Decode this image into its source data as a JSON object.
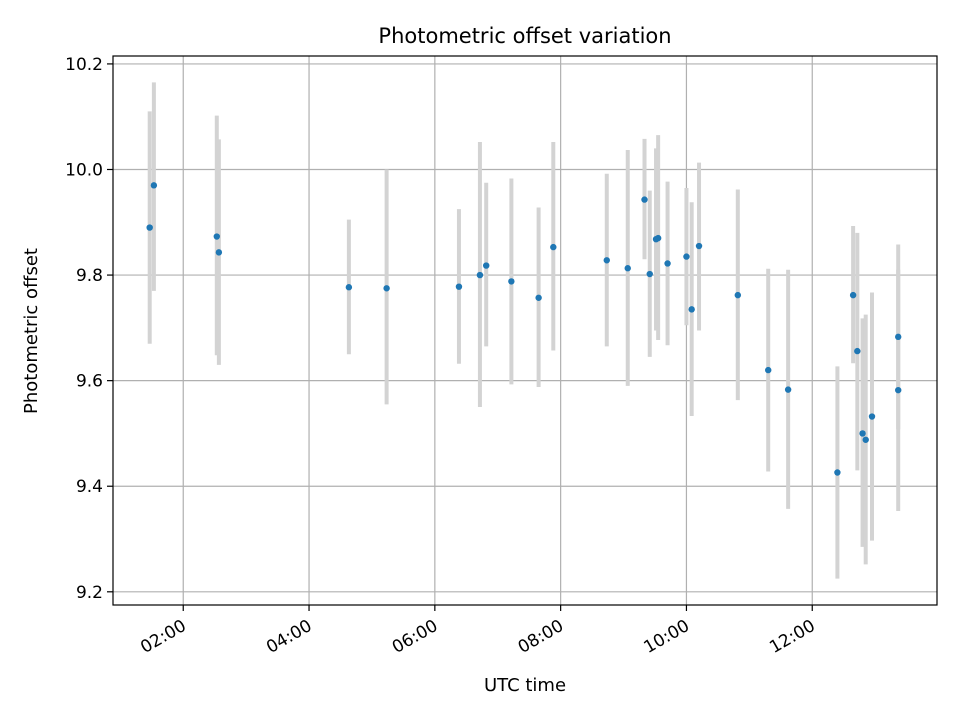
{
  "chart_data": {
    "type": "scatter",
    "title": "Photometric offset variation",
    "xlabel": "UTC time",
    "ylabel": "Photometric offset",
    "x_ticks": [
      "02:00",
      "04:00",
      "06:00",
      "08:00",
      "10:00",
      "12:00"
    ],
    "y_ticks": [
      "9.2",
      "9.4",
      "9.6",
      "9.8",
      "10.0",
      "10.2"
    ],
    "xlim": [
      "00:53",
      "13:59"
    ],
    "ylim": [
      9.175,
      10.215
    ],
    "grid": true,
    "colors": {
      "points": "#1f77b4",
      "errorbars": "#d3d3d3",
      "grid": "#b0b0b0"
    },
    "points": [
      {
        "time": "01:28",
        "y": 9.89,
        "err_low": 9.67,
        "err_high": 10.11
      },
      {
        "time": "01:32",
        "y": 9.97,
        "err_low": 9.77,
        "err_high": 10.165
      },
      {
        "time": "02:32",
        "y": 9.873,
        "err_low": 9.648,
        "err_high": 10.102
      },
      {
        "time": "02:34",
        "y": 9.843,
        "err_low": 9.63,
        "err_high": 10.057
      },
      {
        "time": "04:38",
        "y": 9.777,
        "err_low": 9.65,
        "err_high": 9.905
      },
      {
        "time": "05:14",
        "y": 9.775,
        "err_low": 9.555,
        "err_high": 10.0
      },
      {
        "time": "06:23",
        "y": 9.778,
        "err_low": 9.632,
        "err_high": 9.925
      },
      {
        "time": "06:43",
        "y": 9.8,
        "err_low": 9.55,
        "err_high": 10.052
      },
      {
        "time": "06:49",
        "y": 9.818,
        "err_low": 9.665,
        "err_high": 9.975
      },
      {
        "time": "07:13",
        "y": 9.788,
        "err_low": 9.593,
        "err_high": 9.983
      },
      {
        "time": "07:39",
        "y": 9.757,
        "err_low": 9.588,
        "err_high": 9.928
      },
      {
        "time": "07:53",
        "y": 9.853,
        "err_low": 9.657,
        "err_high": 10.052
      },
      {
        "time": "08:44",
        "y": 9.828,
        "err_low": 9.665,
        "err_high": 9.992
      },
      {
        "time": "09:04",
        "y": 9.813,
        "err_low": 9.59,
        "err_high": 10.037
      },
      {
        "time": "09:20",
        "y": 9.943,
        "err_low": 9.83,
        "err_high": 10.058
      },
      {
        "time": "09:25",
        "y": 9.802,
        "err_low": 9.645,
        "err_high": 9.96
      },
      {
        "time": "09:31",
        "y": 9.868,
        "err_low": 9.695,
        "err_high": 10.04
      },
      {
        "time": "09:33",
        "y": 9.87,
        "err_low": 9.677,
        "err_high": 10.065
      },
      {
        "time": "09:42",
        "y": 9.822,
        "err_low": 9.667,
        "err_high": 9.977
      },
      {
        "time": "10:00",
        "y": 9.835,
        "err_low": 9.705,
        "err_high": 9.965
      },
      {
        "time": "10:05",
        "y": 9.735,
        "err_low": 9.533,
        "err_high": 9.938
      },
      {
        "time": "10:12",
        "y": 9.855,
        "err_low": 9.695,
        "err_high": 10.013
      },
      {
        "time": "10:49",
        "y": 9.762,
        "err_low": 9.563,
        "err_high": 9.962
      },
      {
        "time": "11:18",
        "y": 9.62,
        "err_low": 9.428,
        "err_high": 9.812
      },
      {
        "time": "11:37",
        "y": 9.583,
        "err_low": 9.357,
        "err_high": 9.81
      },
      {
        "time": "12:24",
        "y": 9.426,
        "err_low": 9.225,
        "err_high": 9.627
      },
      {
        "time": "12:39",
        "y": 9.762,
        "err_low": 9.633,
        "err_high": 9.893
      },
      {
        "time": "12:43",
        "y": 9.656,
        "err_low": 9.43,
        "err_high": 9.88
      },
      {
        "time": "12:48",
        "y": 9.5,
        "err_low": 9.285,
        "err_high": 9.718
      },
      {
        "time": "12:51",
        "y": 9.488,
        "err_low": 9.252,
        "err_high": 9.725
      },
      {
        "time": "12:57",
        "y": 9.532,
        "err_low": 9.297,
        "err_high": 9.767
      },
      {
        "time": "13:22",
        "y": 9.683,
        "err_low": 9.508,
        "err_high": 9.858
      },
      {
        "time": "13:22",
        "y": 9.582,
        "err_low": 9.353,
        "err_high": 9.81
      }
    ]
  }
}
